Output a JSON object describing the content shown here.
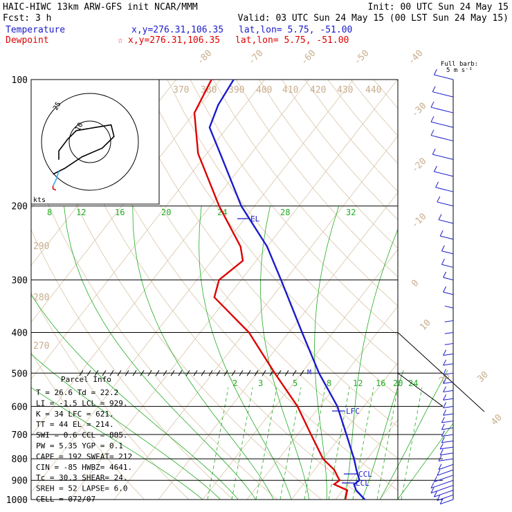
{
  "header": {
    "line1_left": "HAIC-HIWC 13km ARW-GFS init   NCAR/MMM",
    "line1_right": "Init: 00 UTC Sun 24 May 15",
    "line2_left": "Fcst:    3 h",
    "line2_right": "Valid: 03 UTC Sun 24 May 15 (00 LST Sun 24 May 15)",
    "temperature_label": "Temperature",
    "temperature_xy": "x,y=276.31,106.35",
    "temperature_latlon": "lat,lon=  5.75, -51.00",
    "dewpoint_label": "Dewpoint",
    "dewpoint_xy": "x,y=276.31,106.35",
    "dewpoint_latlon": "lat,lon=  5.75, -51.00",
    "dewpoint_marker": "☆"
  },
  "barb_key": {
    "line1": "Full barb:",
    "line2": "5 m s⁻¹"
  },
  "hodograph": {
    "ring_outer_label": "25",
    "ring_inner_label": "10",
    "units": "kts"
  },
  "parcel_info": {
    "title": "Parcel Info",
    "rows": [
      "T   =   26.6  Td =  22.2",
      "LI  =   -1.5  LCL =  929.",
      "K   =     34  LFC =  621.",
      "TT  =     44  EL  =  214.",
      "SWI =    0.6  CCL =  885.",
      "PW  =   5.35  YGP =   0.1",
      "CAPE =   192  SWEAT=  212",
      "CIN  =   -85  HWBZ= 4641.",
      "Tc  =   30.3  SHEAR=  24.",
      "SREH =    52  LAPSE=  6.0",
      "CELL = 072/07"
    ]
  },
  "level_labels": {
    "el": "EL",
    "lfc": "LFC",
    "ccl": "CCL",
    "lcl": "LCL",
    "m": "M"
  },
  "chart_data": {
    "type": "line",
    "title": "",
    "xlabel": "",
    "ylabel": "",
    "y_scale": "log-pressure",
    "pressure_levels": [
      100,
      200,
      300,
      400,
      500,
      600,
      700,
      800,
      900,
      1000
    ],
    "isotherm_labels": [
      -80,
      -70,
      -60,
      -50,
      -40,
      -30,
      -20,
      -10,
      0,
      10,
      20,
      30,
      40
    ],
    "theta_labels": [
      370,
      380,
      390,
      400,
      410,
      420,
      430,
      440,
      290,
      280,
      270
    ],
    "mixing_ratio_labels_upper": [
      8,
      12,
      16,
      20,
      24,
      28,
      32
    ],
    "mixing_ratio_labels_lower": [
      2,
      3,
      5,
      8,
      12,
      16,
      20,
      24
    ],
    "series": [
      {
        "name": "Temperature",
        "color": "#1a1acc",
        "points": [
          {
            "p": 1000,
            "t": 26.6
          },
          {
            "p": 950,
            "t": 23.0
          },
          {
            "p": 920,
            "t": 21.5
          },
          {
            "p": 900,
            "t": 22.0
          },
          {
            "p": 850,
            "t": 19.5
          },
          {
            "p": 800,
            "t": 17.0
          },
          {
            "p": 700,
            "t": 11.0
          },
          {
            "p": 600,
            "t": 4.0
          },
          {
            "p": 500,
            "t": -6.0
          },
          {
            "p": 400,
            "t": -17.0
          },
          {
            "p": 300,
            "t": -31.0
          },
          {
            "p": 250,
            "t": -40.0
          },
          {
            "p": 200,
            "t": -53.0
          },
          {
            "p": 150,
            "t": -67.0
          },
          {
            "p": 130,
            "t": -74.0
          },
          {
            "p": 115,
            "t": -76.0
          },
          {
            "p": 100,
            "t": -77.0
          }
        ]
      },
      {
        "name": "Dewpoint",
        "color": "#dd0000",
        "points": [
          {
            "p": 1000,
            "t": 22.2
          },
          {
            "p": 950,
            "t": 21.0
          },
          {
            "p": 920,
            "t": 17.0
          },
          {
            "p": 900,
            "t": 17.5
          },
          {
            "p": 850,
            "t": 14.5
          },
          {
            "p": 800,
            "t": 10.0
          },
          {
            "p": 700,
            "t": 3.0
          },
          {
            "p": 600,
            "t": -5.0
          },
          {
            "p": 500,
            "t": -16.0
          },
          {
            "p": 400,
            "t": -29.0
          },
          {
            "p": 330,
            "t": -43.0
          },
          {
            "p": 300,
            "t": -45.0
          },
          {
            "p": 270,
            "t": -43.0
          },
          {
            "p": 250,
            "t": -46.0
          },
          {
            "p": 200,
            "t": -58.0
          },
          {
            "p": 150,
            "t": -72.0
          },
          {
            "p": 120,
            "t": -80.0
          },
          {
            "p": 100,
            "t": -82.0
          }
        ]
      }
    ]
  },
  "hodograph_data": {
    "series": [
      {
        "color": "#000000",
        "points": [
          [
            0,
            2
          ],
          [
            0,
            8
          ],
          [
            6,
            16
          ],
          [
            12,
            22
          ],
          [
            24,
            24
          ],
          [
            36,
            26
          ],
          [
            38,
            18
          ],
          [
            30,
            10
          ],
          [
            16,
            4
          ],
          [
            4,
            -4
          ],
          [
            -4,
            -8
          ]
        ]
      },
      {
        "color": "#33aaee",
        "points": [
          [
            0,
            -6
          ],
          [
            -2,
            -12
          ],
          [
            -4,
            -16
          ]
        ]
      },
      {
        "color": "#dd0000",
        "points": [
          [
            -4,
            -16
          ],
          [
            -4,
            -18
          ],
          [
            -2,
            -19
          ]
        ]
      }
    ]
  },
  "wind_profile": [
    {
      "p": 1000,
      "s": 4
    },
    {
      "p": 975,
      "s": 6
    },
    {
      "p": 950,
      "s": 8
    },
    {
      "p": 925,
      "s": 10
    },
    {
      "p": 900,
      "s": 10
    },
    {
      "p": 875,
      "s": 8
    },
    {
      "p": 850,
      "s": 6
    },
    {
      "p": 825,
      "s": 5
    },
    {
      "p": 800,
      "s": 5
    },
    {
      "p": 775,
      "s": 4
    },
    {
      "p": 750,
      "s": 4
    },
    {
      "p": 725,
      "s": 3
    },
    {
      "p": 700,
      "s": 3
    },
    {
      "p": 675,
      "s": 3
    },
    {
      "p": 650,
      "s": 3
    },
    {
      "p": 625,
      "s": 2
    },
    {
      "p": 600,
      "s": 2
    },
    {
      "p": 575,
      "s": 2
    },
    {
      "p": 550,
      "s": 2
    },
    {
      "p": 525,
      "s": 2
    },
    {
      "p": 500,
      "s": 2
    },
    {
      "p": 475,
      "s": 2
    },
    {
      "p": 450,
      "s": 2
    },
    {
      "p": 425,
      "s": 1
    },
    {
      "p": 400,
      "s": 1
    },
    {
      "p": 375,
      "s": 1
    },
    {
      "p": 350,
      "s": 1
    },
    {
      "p": 325,
      "s": 2
    },
    {
      "p": 300,
      "s": 2
    },
    {
      "p": 280,
      "s": 3
    },
    {
      "p": 260,
      "s": 3
    },
    {
      "p": 240,
      "s": 4
    },
    {
      "p": 220,
      "s": 5
    },
    {
      "p": 200,
      "s": 6
    },
    {
      "p": 185,
      "s": 7
    },
    {
      "p": 170,
      "s": 8
    },
    {
      "p": 155,
      "s": 9
    },
    {
      "p": 140,
      "s": 10
    },
    {
      "p": 130,
      "s": 10
    },
    {
      "p": 120,
      "s": 10
    },
    {
      "p": 110,
      "s": 9
    },
    {
      "p": 100,
      "s": 8
    }
  ]
}
